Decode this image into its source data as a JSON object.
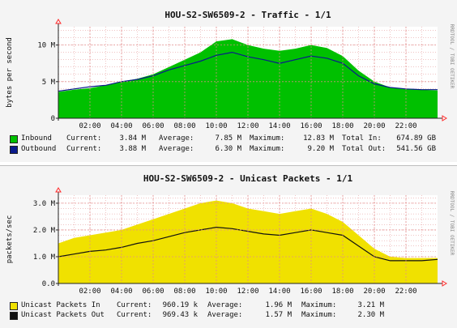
{
  "colors": {
    "inbound": "#00c000",
    "outbound": "#0a1a8c",
    "unicast_in": "#f0e100",
    "unicast_out": "#111111",
    "grid": "#e28a8a",
    "axis": "#222222",
    "arrow": "#ff2a2a"
  },
  "chart_data": [
    {
      "type": "area",
      "title": "HOU-S2-SW6509-2 - Traffic - 1/1",
      "ylabel": "bytes per second",
      "side_text": "RRDTOOL / TOBI OETIKER",
      "ylim": [
        0,
        12.5
      ],
      "y_unit": "M",
      "yticks": [
        {
          "v": 0,
          "label": "0"
        },
        {
          "v": 5,
          "label": "5 M"
        },
        {
          "v": 10,
          "label": "10 M"
        }
      ],
      "xticks": [
        "02:00",
        "04:00",
        "06:00",
        "08:00",
        "10:00",
        "12:00",
        "14:00",
        "16:00",
        "18:00",
        "20:00",
        "22:00"
      ],
      "xtick_hours": [
        2,
        4,
        6,
        8,
        10,
        12,
        14,
        16,
        18,
        20,
        22
      ],
      "x_range_hours": [
        0,
        24
      ],
      "x_hours": [
        0,
        1,
        2,
        3,
        4,
        5,
        6,
        7,
        8,
        9,
        10,
        11,
        12,
        13,
        14,
        15,
        16,
        17,
        18,
        19,
        20,
        21,
        22,
        23,
        24
      ],
      "series": [
        {
          "name": "Inbound",
          "style": "area",
          "values": [
            3.6,
            3.9,
            4.1,
            4.5,
            5.0,
            5.4,
            6.0,
            7.0,
            8.0,
            9.0,
            10.5,
            10.8,
            10.0,
            9.5,
            9.2,
            9.5,
            10.0,
            9.6,
            8.5,
            6.5,
            5.0,
            4.2,
            4.0,
            3.9,
            3.8
          ]
        },
        {
          "name": "Outbound",
          "style": "line",
          "values": [
            3.7,
            4.0,
            4.3,
            4.5,
            5.0,
            5.3,
            5.8,
            6.6,
            7.2,
            7.8,
            8.6,
            9.0,
            8.4,
            8.0,
            7.5,
            8.0,
            8.5,
            8.2,
            7.5,
            5.8,
            4.7,
            4.2,
            4.0,
            3.9,
            3.9
          ]
        }
      ],
      "legend": [
        {
          "label": "Inbound",
          "current": "3.84 M",
          "average": "7.85 M",
          "maximum": "12.83 M",
          "total_label": "Total In:",
          "total": "674.89 GB"
        },
        {
          "label": "Outbound",
          "current": "3.88 M",
          "average": "6.30 M",
          "maximum": "9.20 M",
          "total_label": "Total Out:",
          "total": "541.56 GB"
        }
      ]
    },
    {
      "type": "area",
      "title": "HOU-S2-SW6509-2 - Unicast Packets - 1/1",
      "ylabel": "packets/sec",
      "side_text": "RRDTOOL / TOBI OETIKER",
      "ylim": [
        0,
        3.3
      ],
      "y_unit": "M",
      "yticks": [
        {
          "v": 0,
          "label": "0.0"
        },
        {
          "v": 1,
          "label": "1.0 M"
        },
        {
          "v": 2,
          "label": "2.0 M"
        },
        {
          "v": 3,
          "label": "3.0 M"
        }
      ],
      "xticks": [
        "02:00",
        "04:00",
        "06:00",
        "08:00",
        "10:00",
        "12:00",
        "14:00",
        "16:00",
        "18:00",
        "20:00",
        "22:00"
      ],
      "xtick_hours": [
        2,
        4,
        6,
        8,
        10,
        12,
        14,
        16,
        18,
        20,
        22
      ],
      "x_range_hours": [
        0,
        24
      ],
      "x_hours": [
        0,
        1,
        2,
        3,
        4,
        5,
        6,
        7,
        8,
        9,
        10,
        11,
        12,
        13,
        14,
        15,
        16,
        17,
        18,
        19,
        20,
        21,
        22,
        23,
        24
      ],
      "series": [
        {
          "name": "Unicast Packets In",
          "style": "area",
          "values": [
            1.5,
            1.7,
            1.8,
            1.9,
            2.0,
            2.2,
            2.4,
            2.6,
            2.8,
            3.0,
            3.1,
            3.0,
            2.8,
            2.7,
            2.6,
            2.7,
            2.8,
            2.6,
            2.3,
            1.8,
            1.3,
            1.0,
            0.95,
            0.95,
            0.95
          ]
        },
        {
          "name": "Unicast Packets Out",
          "style": "line",
          "values": [
            1.0,
            1.1,
            1.2,
            1.25,
            1.35,
            1.5,
            1.6,
            1.75,
            1.9,
            2.0,
            2.1,
            2.05,
            1.95,
            1.85,
            1.8,
            1.9,
            2.0,
            1.9,
            1.8,
            1.4,
            1.0,
            0.85,
            0.85,
            0.85,
            0.9
          ]
        }
      ],
      "legend": [
        {
          "label": "Unicast Packets In",
          "current": "960.19 k",
          "average": "1.96 M",
          "maximum": "3.21 M"
        },
        {
          "label": "Unicast Packets Out",
          "current": "969.43 k",
          "average": "1.57 M",
          "maximum": "2.30 M"
        }
      ]
    }
  ],
  "legend_words": {
    "current": "Current:",
    "average": "Average:",
    "maximum": "Maximum:"
  }
}
